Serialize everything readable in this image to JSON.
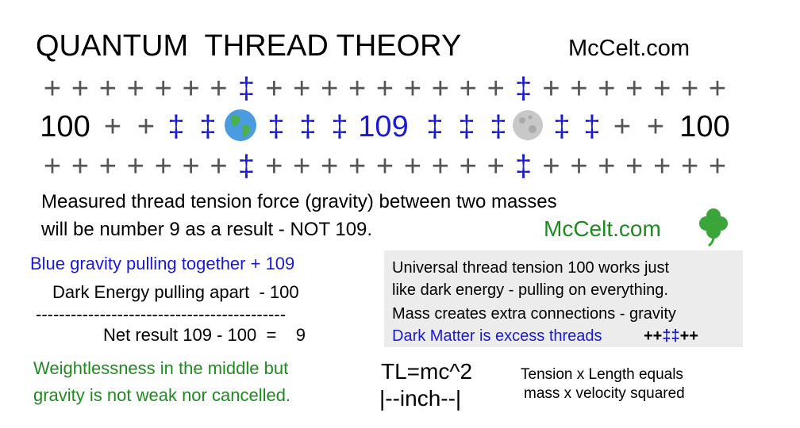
{
  "header": {
    "title": "QUANTUM  THREAD THEORY",
    "site": "McCelt.com"
  },
  "grid": {
    "top_row": "+++++++‡+++++++++‡+++++++",
    "middle_row": [
      "100",
      "++",
      "‡‡",
      "‡‡‡",
      "109",
      "‡‡‡",
      "‡‡",
      "++",
      "100"
    ],
    "bottom_row": "+++++++‡+++++++++‡+++++++"
  },
  "statement": {
    "lines": [
      "Measured thread tension force (gravity) between two masses",
      "will be number 9 as a result - NOT 109."
    ],
    "site": "McCelt.com"
  },
  "calculation": {
    "lines": [
      "Blue gravity pulling together + 109",
      "Dark Energy pulling apart  - 100",
      "-------------------------------------------",
      "Net result 109 - 100  =    9"
    ]
  },
  "note": {
    "lines": [
      "Weightlessness in the middle but",
      "gravity is not weak nor cancelled."
    ]
  },
  "box": {
    "lines": [
      "Universal thread tension 100 works just",
      "like dark energy - pulling on everything.",
      "Mass creates extra connections - gravity",
      "Dark Matter is excess threads"
    ],
    "symbols": [
      "++",
      "‡‡",
      "++"
    ]
  },
  "formula": {
    "equation": "TL=mc^2",
    "unit": "|--inch--|",
    "explanation": [
      "Tension x Length equals",
      "mass x velocity squared"
    ]
  }
}
